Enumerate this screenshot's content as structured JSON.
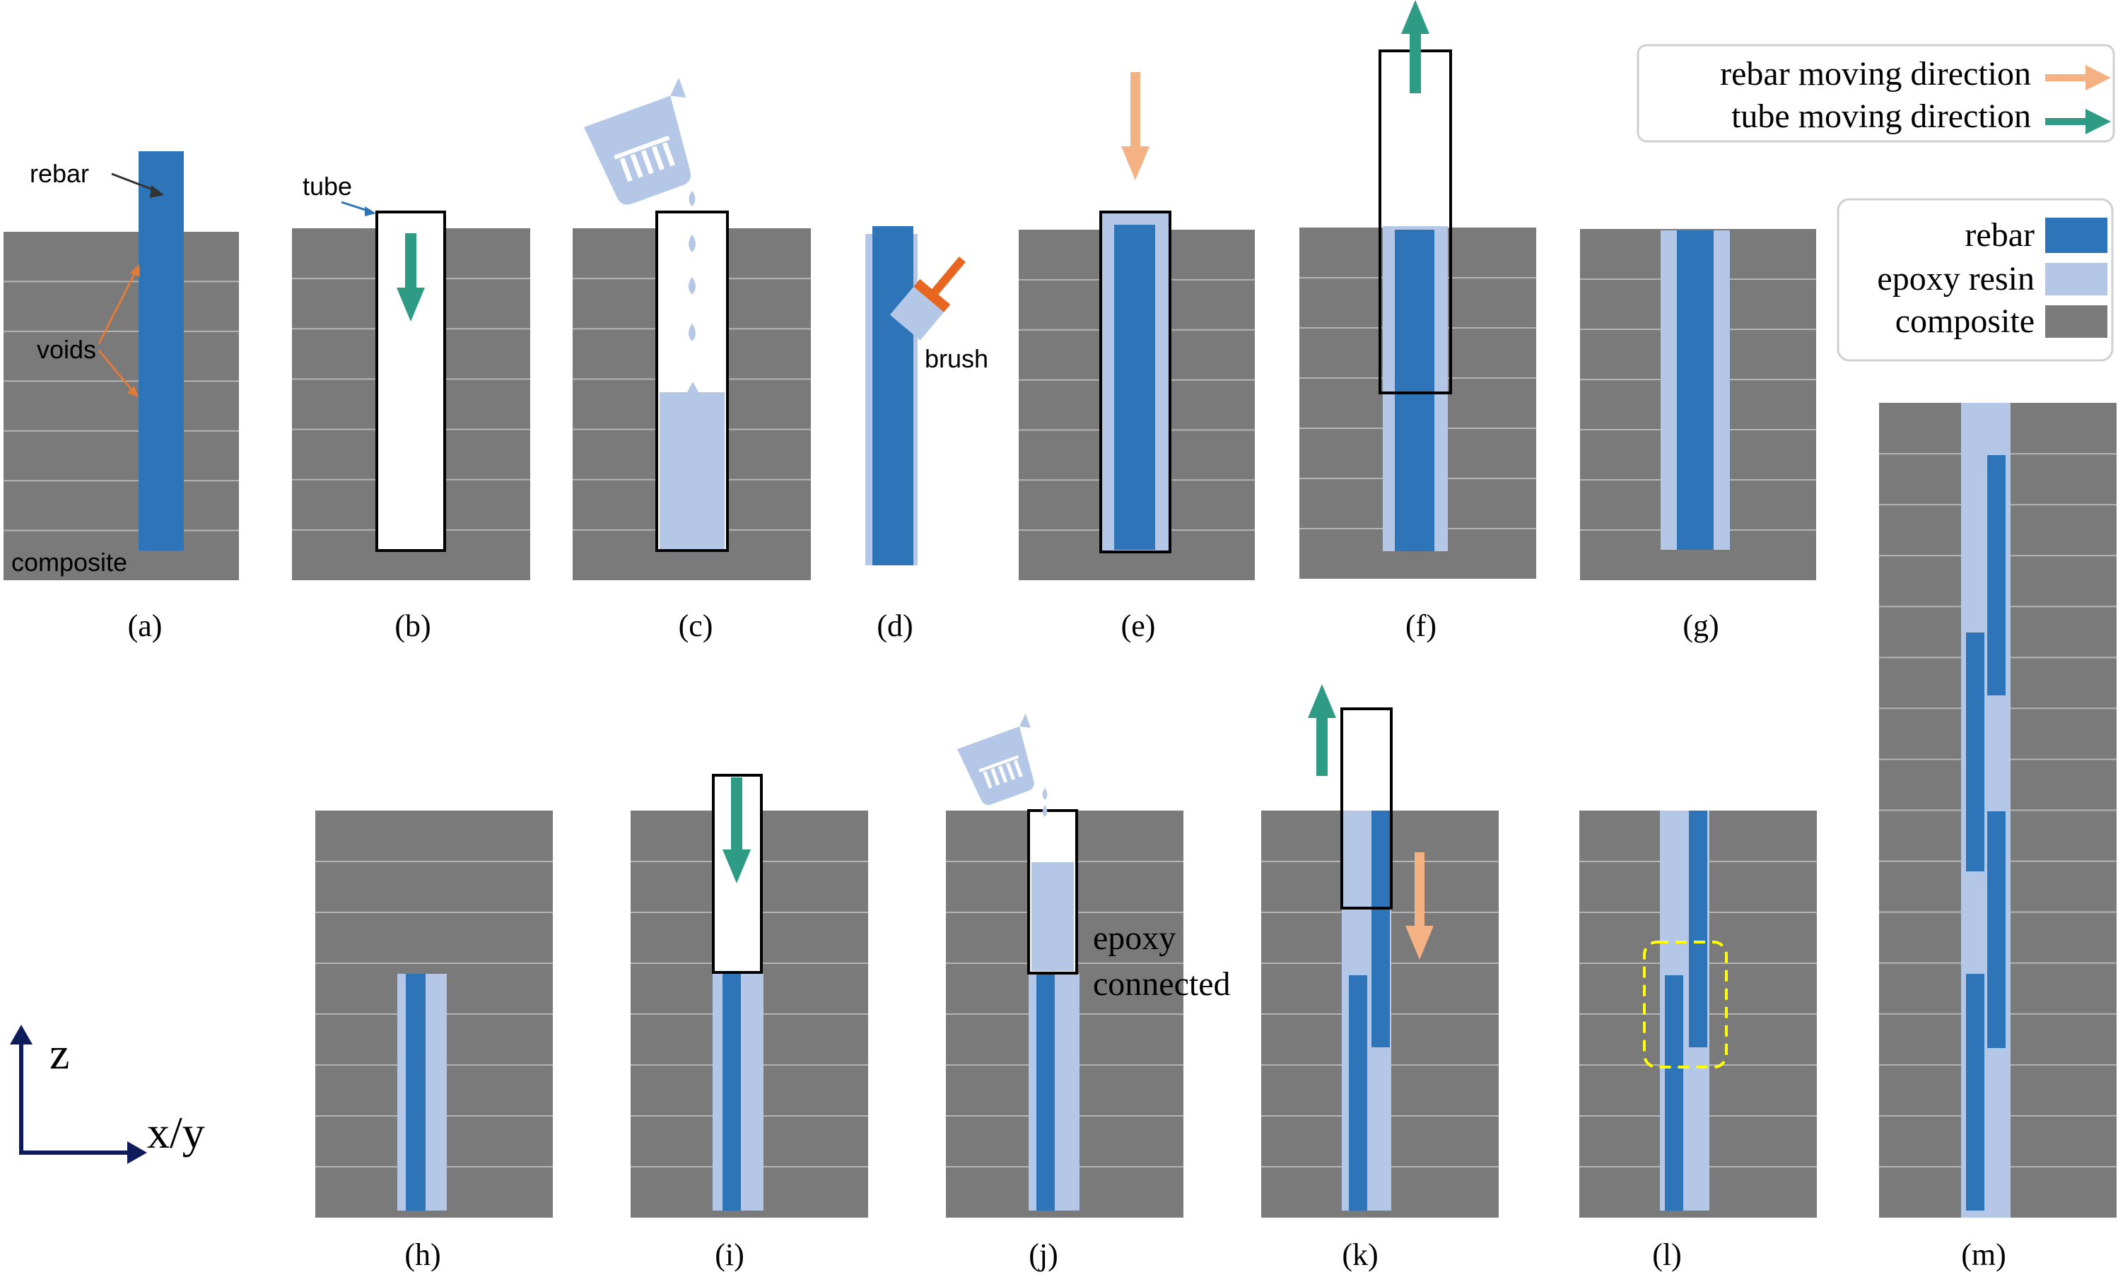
{
  "colors": {
    "composite": "#7a7a7a",
    "layer_line": "#b4b4b4",
    "rebar": "#2e74b8",
    "epoxy": "#b4c7e7",
    "tube_fill": "#ffffff",
    "tube_stroke": "#000000",
    "rebar_arrow": "#f4b183",
    "tube_arrow": "#2e9c84",
    "annotation_arrow": "#e07b39",
    "connection_box": "#ffff00",
    "axis": "#0f1c5c",
    "brush_handle": "#e8661f",
    "text": "#000000"
  },
  "panel_labels": [
    "(a)",
    "(b)",
    "(c)",
    "(d)",
    "(e)",
    "(f)",
    "(g)",
    "(h)",
    "(i)",
    "(j)",
    "(k)",
    "(l)",
    "(m)"
  ],
  "annotations": {
    "rebar": "rebar",
    "voids": "voids",
    "composite": "composite",
    "tube": "tube",
    "brush": "brush",
    "epoxy_connected_line1": "epoxy",
    "epoxy_connected_line2": "connected"
  },
  "legend_direction": {
    "rebar_moving": "rebar moving direction",
    "tube_moving": "tube moving direction"
  },
  "legend_material": {
    "rebar": "rebar",
    "epoxy": "epoxy resin",
    "composite": "composite"
  },
  "axes": {
    "z": "z",
    "xy": "x/y"
  },
  "icons": [
    "beaker-icon",
    "brush-icon",
    "droplet-icon"
  ]
}
